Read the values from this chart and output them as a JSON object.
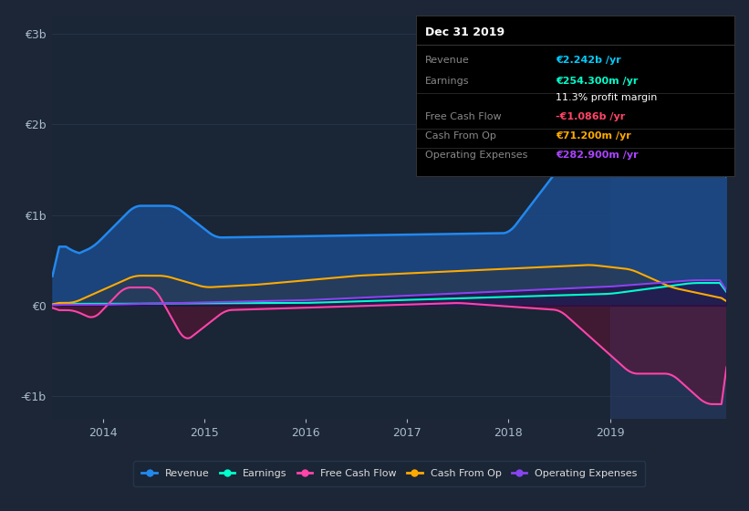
{
  "bg_color": "#1c2636",
  "plot_bg_color": "#1a2535",
  "grid_color": "#2a3a50",
  "zero_line_color": "#7a8a9a",
  "info_box": {
    "title": "Dec 31 2019",
    "rows": [
      {
        "label": "Revenue",
        "value": "€2.242b /yr",
        "value_color": "#00ccff"
      },
      {
        "label": "Earnings",
        "value": "€254.300m /yr",
        "value_color": "#00ffcc"
      },
      {
        "label": "",
        "value": "11.3% profit margin",
        "value_color": "#ffffff"
      },
      {
        "label": "Free Cash Flow",
        "value": "-€1.086b /yr",
        "value_color": "#ff4466"
      },
      {
        "label": "Cash From Op",
        "value": "€71.200m /yr",
        "value_color": "#ffaa00"
      },
      {
        "label": "Operating Expenses",
        "value": "€282.900m /yr",
        "value_color": "#aa44ff"
      }
    ]
  },
  "ylim": [
    -1250000000.0,
    3200000000.0
  ],
  "yticks": [
    -1000000000.0,
    0,
    1000000000.0,
    2000000000.0,
    3000000000.0
  ],
  "ytick_labels": [
    "-€1b",
    "€0",
    "€1b",
    "€2b",
    "€3b"
  ],
  "series": {
    "Revenue": {
      "color": "#2288ee",
      "fill_color": "#1a4a88",
      "fill_alpha": 0.85
    },
    "Earnings": {
      "color": "#00ffcc",
      "fill_color": "#005544",
      "fill_alpha": 0.4
    },
    "FreeCashFlow": {
      "color": "#ff44aa",
      "fill_color": "#661133",
      "fill_alpha": 0.5
    },
    "CashFromOp": {
      "color": "#ffaa00",
      "fill_color": "#2a3a50",
      "fill_alpha": 0.7
    },
    "OperatingExpenses": {
      "color": "#8844ee",
      "fill_color": "#220044",
      "fill_alpha": 0.5
    }
  },
  "legend": [
    {
      "label": "Revenue",
      "color": "#2288ee"
    },
    {
      "label": "Earnings",
      "color": "#00ffcc"
    },
    {
      "label": "Free Cash Flow",
      "color": "#ff44aa"
    },
    {
      "label": "Cash From Op",
      "color": "#ffaa00"
    },
    {
      "label": "Operating Expenses",
      "color": "#8844ee"
    }
  ],
  "highlight_x_start": 2019.0,
  "highlight_x_end": 2020.15,
  "xlim": [
    2013.5,
    2020.15
  ],
  "xticks": [
    2014,
    2015,
    2016,
    2017,
    2018,
    2019
  ],
  "xtick_labels": [
    "2014",
    "2015",
    "2016",
    "2017",
    "2018",
    "2019"
  ]
}
